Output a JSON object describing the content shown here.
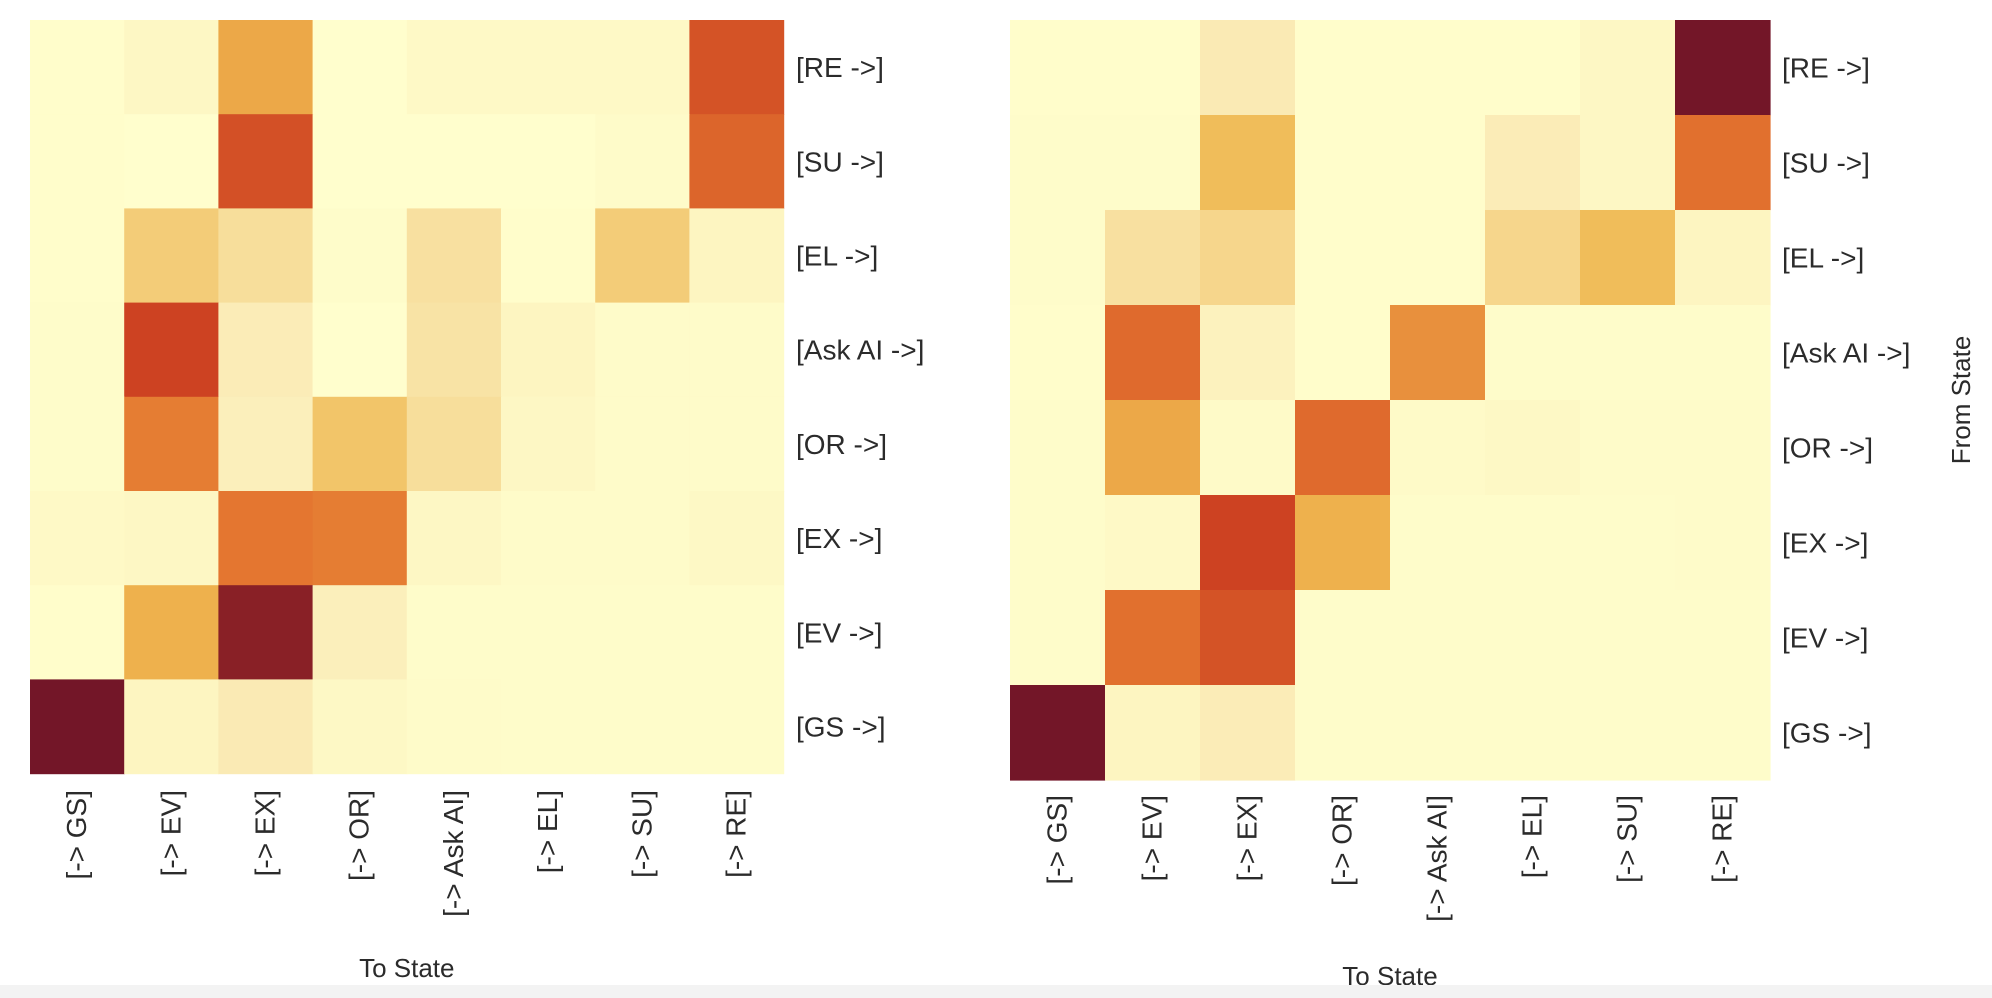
{
  "chart_data": [
    {
      "type": "heatmap",
      "xlabel": "To State",
      "ylabel": "",
      "x_categories": [
        "[-> GS]",
        "[-> EV]",
        "[-> EX]",
        "[-> OR]",
        "[-> Ask AI]",
        "[-> EL]",
        "[-> SU]",
        "[-> RE]"
      ],
      "y_categories": [
        "[RE ->]",
        "[SU ->]",
        "[EL ->]",
        "[Ask AI ->]",
        "[OR ->]",
        "[EX ->]",
        "[EV ->]",
        "[GS ->]"
      ],
      "value_range": [
        0,
        1
      ],
      "values": [
        [
          0.02,
          0.08,
          0.45,
          0.01,
          0.06,
          0.06,
          0.06,
          0.72
        ],
        [
          0.02,
          0.01,
          0.73,
          0.01,
          0.01,
          0.01,
          0.04,
          0.66
        ],
        [
          0.02,
          0.32,
          0.25,
          0.03,
          0.24,
          0.02,
          0.32,
          0.1
        ],
        [
          0.03,
          0.78,
          0.18,
          0.01,
          0.23,
          0.1,
          0.04,
          0.04
        ],
        [
          0.03,
          0.58,
          0.15,
          0.35,
          0.25,
          0.08,
          0.04,
          0.04
        ],
        [
          0.06,
          0.08,
          0.6,
          0.58,
          0.08,
          0.04,
          0.04,
          0.07
        ],
        [
          0.02,
          0.42,
          0.95,
          0.15,
          0.03,
          0.03,
          0.03,
          0.03
        ],
        [
          1.0,
          0.1,
          0.2,
          0.07,
          0.04,
          0.03,
          0.03,
          0.03
        ]
      ]
    },
    {
      "type": "heatmap",
      "xlabel": "To State",
      "ylabel": "From State",
      "x_categories": [
        "[-> GS]",
        "[-> EV]",
        "[-> EX]",
        "[-> OR]",
        "[-> Ask AI]",
        "[-> EL]",
        "[-> SU]",
        "[-> RE]"
      ],
      "y_categories": [
        "[RE ->]",
        "[SU ->]",
        "[EL ->]",
        "[Ask AI ->]",
        "[OR ->]",
        "[EX ->]",
        "[EV ->]",
        "[GS ->]"
      ],
      "value_range": [
        0,
        1
      ],
      "values": [
        [
          0.02,
          0.02,
          0.2,
          0.02,
          0.02,
          0.02,
          0.08,
          1.0
        ],
        [
          0.03,
          0.03,
          0.38,
          0.02,
          0.02,
          0.18,
          0.08,
          0.62
        ],
        [
          0.03,
          0.24,
          0.28,
          0.02,
          0.02,
          0.28,
          0.38,
          0.1
        ],
        [
          0.02,
          0.64,
          0.12,
          0.02,
          0.52,
          0.03,
          0.03,
          0.03
        ],
        [
          0.03,
          0.45,
          0.05,
          0.64,
          0.05,
          0.07,
          0.04,
          0.04
        ],
        [
          0.03,
          0.06,
          0.78,
          0.42,
          0.03,
          0.03,
          0.03,
          0.04
        ],
        [
          0.03,
          0.62,
          0.72,
          0.03,
          0.03,
          0.03,
          0.03,
          0.03
        ],
        [
          1.0,
          0.1,
          0.18,
          0.03,
          0.03,
          0.03,
          0.03,
          0.03
        ]
      ]
    }
  ]
}
